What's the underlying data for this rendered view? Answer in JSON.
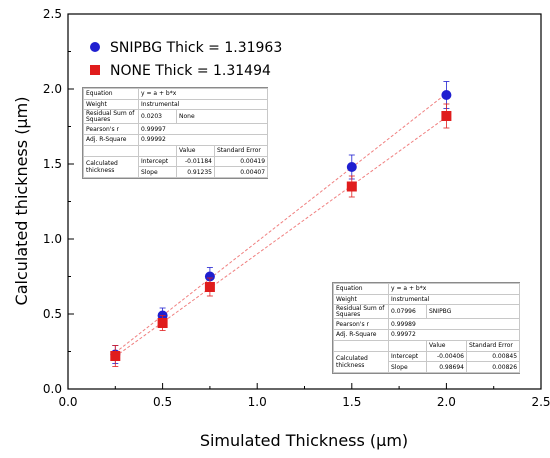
{
  "chart_data": {
    "type": "scatter",
    "xlabel": "Simulated Thickness (µm)",
    "ylabel": "Calculated thickness (µm)",
    "xlim": [
      0.0,
      2.5
    ],
    "ylim": [
      0.0,
      2.5
    ],
    "x_ticks": [
      "0.0",
      "0.5",
      "1.0",
      "1.5",
      "2.0",
      "2.5"
    ],
    "y_ticks": [
      "0.0",
      "0.5",
      "1.0",
      "1.5",
      "2.0",
      "2.5"
    ],
    "grid": false,
    "legend_position": "top-left",
    "series": [
      {
        "name": "SNIPBG Thick = 1.31963",
        "marker": "circle",
        "color": "#1f1fd0",
        "x": [
          0.25,
          0.5,
          0.75,
          1.5,
          2.0
        ],
        "y": [
          0.23,
          0.49,
          0.75,
          1.48,
          1.96
        ],
        "err": [
          0.06,
          0.05,
          0.06,
          0.08,
          0.09
        ],
        "fit": {
          "intercept": -0.00406,
          "slope": 0.98694
        }
      },
      {
        "name": "NONE Thick = 1.31494",
        "marker": "square",
        "color": "#e01c1c",
        "x": [
          0.25,
          0.5,
          0.75,
          1.5,
          2.0
        ],
        "y": [
          0.22,
          0.44,
          0.68,
          1.35,
          1.82
        ],
        "err": [
          0.07,
          0.05,
          0.06,
          0.07,
          0.08
        ],
        "fit": {
          "intercept": -0.01184,
          "slope": 0.91235
        }
      }
    ],
    "tables": [
      {
        "equation_label": "Equation",
        "equation": "y = a + b*x",
        "weight_label": "Weight",
        "weight": "Instrumental",
        "rss_label": "Residual Sum of Squares",
        "rss": "0.0203",
        "series_label": "None",
        "pearson_label": "Pearson's r",
        "pearson": "0.99997",
        "adjr2_label": "Adj. R-Square",
        "adjr2": "0.99992",
        "value_header": "Value",
        "stderr_header": "Standard Error",
        "calc_label": "Calculated thickness",
        "intercept_label": "Intercept",
        "intercept": "-0.01184",
        "intercept_err": "0.00419",
        "slope_label": "Slope",
        "slope": "0.91235",
        "slope_err": "0.00407"
      },
      {
        "equation_label": "Equation",
        "equation": "y = a + b*x",
        "weight_label": "Weight",
        "weight": "Instrumental",
        "rss_label": "Residual Sum of Squares",
        "rss": "0.07996",
        "series_label": "SNIPBG",
        "pearson_label": "Pearson's r",
        "pearson": "0.99989",
        "adjr2_label": "Adj. R-Square",
        "adjr2": "0.99972",
        "value_header": "Value",
        "stderr_header": "Standard Error",
        "calc_label": "Calculated thickness",
        "intercept_label": "Intercept",
        "intercept": "-0.00406",
        "intercept_err": "0.00845",
        "slope_label": "Slope",
        "slope": "0.98694",
        "slope_err": "0.00826"
      }
    ]
  }
}
